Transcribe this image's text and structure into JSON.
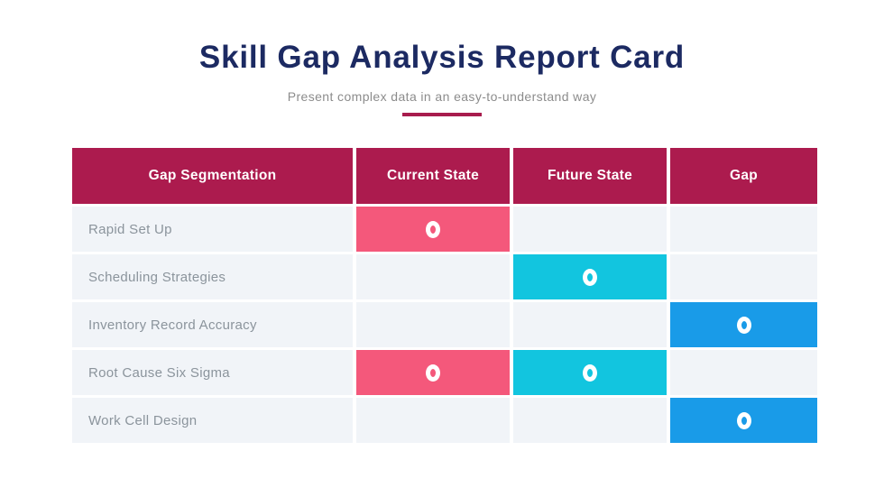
{
  "header": {
    "title": "Skill Gap Analysis Report Card",
    "subtitle": "Present complex data in an easy-to-understand way"
  },
  "colors": {
    "title_navy": "#1C2A62",
    "subtitle_gray": "#8C8C8C",
    "header_crimson": "#AC1B4E",
    "underline_crimson": "#A81C4D",
    "marker_pink": "#F4587B",
    "marker_cyan": "#12C5DF",
    "marker_blue": "#199BE8",
    "cell_bg": "#F1F4F8",
    "row_label_gray": "#8B949C"
  },
  "table": {
    "columns": [
      "Gap Segmentation",
      "Current State",
      "Future State",
      "Gap"
    ],
    "rows": [
      {
        "label": "Rapid Set Up",
        "current": true,
        "future": false,
        "gap": false
      },
      {
        "label": "Scheduling Strategies",
        "current": false,
        "future": true,
        "gap": false
      },
      {
        "label": "Inventory Record Accuracy",
        "current": false,
        "future": false,
        "gap": true
      },
      {
        "label": "Root Cause Six Sigma",
        "current": true,
        "future": true,
        "gap": false
      },
      {
        "label": "Work Cell Design",
        "current": false,
        "future": false,
        "gap": true
      }
    ]
  },
  "chart_data": {
    "type": "table",
    "title": "Skill Gap Analysis Report Card",
    "subtitle": "Present complex data in an easy-to-understand way",
    "columns": [
      "Gap Segmentation",
      "Current State",
      "Future State",
      "Gap"
    ],
    "rows": [
      {
        "label": "Rapid Set Up",
        "marked": [
          "Current State"
        ]
      },
      {
        "label": "Scheduling Strategies",
        "marked": [
          "Future State"
        ]
      },
      {
        "label": "Inventory Record Accuracy",
        "marked": [
          "Gap"
        ]
      },
      {
        "label": "Root Cause Six Sigma",
        "marked": [
          "Current State",
          "Future State"
        ]
      },
      {
        "label": "Work Cell Design",
        "marked": [
          "Gap"
        ]
      }
    ],
    "marker_glyph": "white ring",
    "marker_colors": {
      "Current State": "#F4587B",
      "Future State": "#12C5DF",
      "Gap": "#199BE8"
    },
    "legend_position": "none",
    "grid": "white gaps between cells"
  }
}
